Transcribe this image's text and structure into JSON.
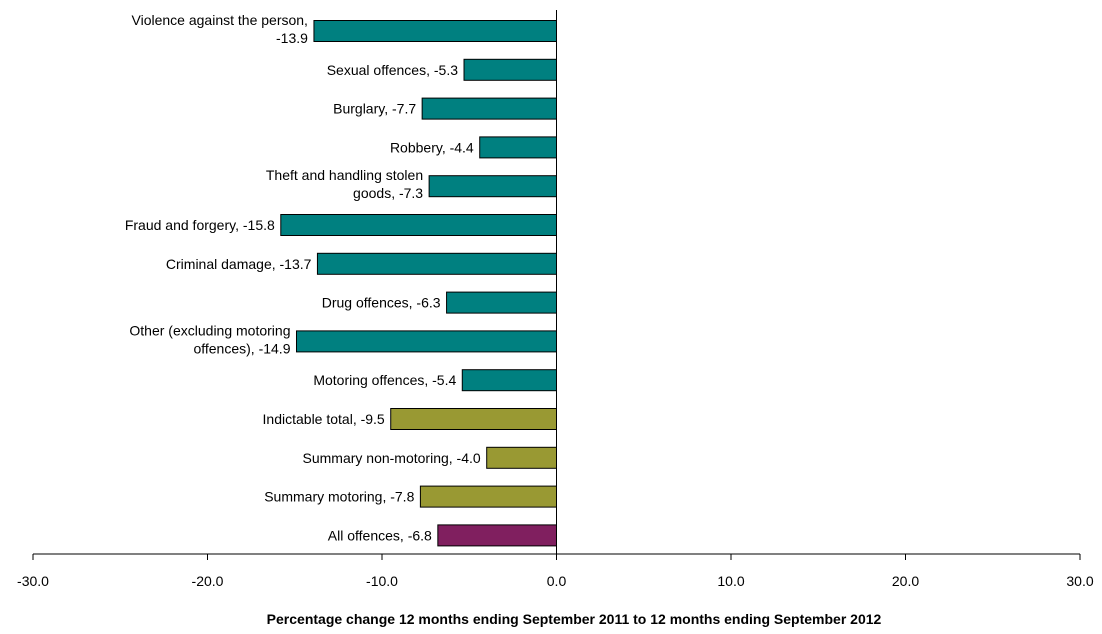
{
  "chart_data": {
    "type": "bar",
    "orientation": "horizontal",
    "title": "",
    "xlabel": "Percentage change 12 months ending September 2011 to 12 months ending September 2012",
    "ylabel": "",
    "xlim": [
      -30,
      30
    ],
    "xticks": [
      "-30.0",
      "-20.0",
      "-10.0",
      "0.0",
      "10.0",
      "20.0",
      "30.0"
    ],
    "grid": false,
    "legend": "none",
    "colors": {
      "offence_group": "#008080",
      "total_group": "#999933",
      "all_offences": "#801f5f",
      "outline": "#000000"
    },
    "bars": [
      {
        "label_lines": [
          "Violence against the person,",
          "-13.9"
        ],
        "value": -13.9,
        "group": "offence_group"
      },
      {
        "label_lines": [
          "Sexual offences, -5.3"
        ],
        "value": -5.3,
        "group": "offence_group"
      },
      {
        "label_lines": [
          "Burglary, -7.7"
        ],
        "value": -7.7,
        "group": "offence_group"
      },
      {
        "label_lines": [
          "Robbery, -4.4"
        ],
        "value": -4.4,
        "group": "offence_group"
      },
      {
        "label_lines": [
          "Theft and handling stolen",
          "goods, -7.3"
        ],
        "value": -7.3,
        "group": "offence_group"
      },
      {
        "label_lines": [
          "Fraud and forgery, -15.8"
        ],
        "value": -15.8,
        "group": "offence_group"
      },
      {
        "label_lines": [
          "Criminal damage, -13.7"
        ],
        "value": -13.7,
        "group": "offence_group"
      },
      {
        "label_lines": [
          "Drug offences, -6.3"
        ],
        "value": -6.3,
        "group": "offence_group"
      },
      {
        "label_lines": [
          "Other (excluding motoring",
          "offences), -14.9"
        ],
        "value": -14.9,
        "group": "offence_group"
      },
      {
        "label_lines": [
          "Motoring offences, -5.4"
        ],
        "value": -5.4,
        "group": "offence_group"
      },
      {
        "label_lines": [
          "Indictable total, -9.5"
        ],
        "value": -9.5,
        "group": "total_group"
      },
      {
        "label_lines": [
          "Summary non-motoring, -4.0"
        ],
        "value": -4.0,
        "group": "total_group"
      },
      {
        "label_lines": [
          "Summary motoring, -7.8"
        ],
        "value": -7.8,
        "group": "total_group"
      },
      {
        "label_lines": [
          "All offences, -6.8"
        ],
        "value": -6.8,
        "group": "all_offences"
      }
    ]
  }
}
